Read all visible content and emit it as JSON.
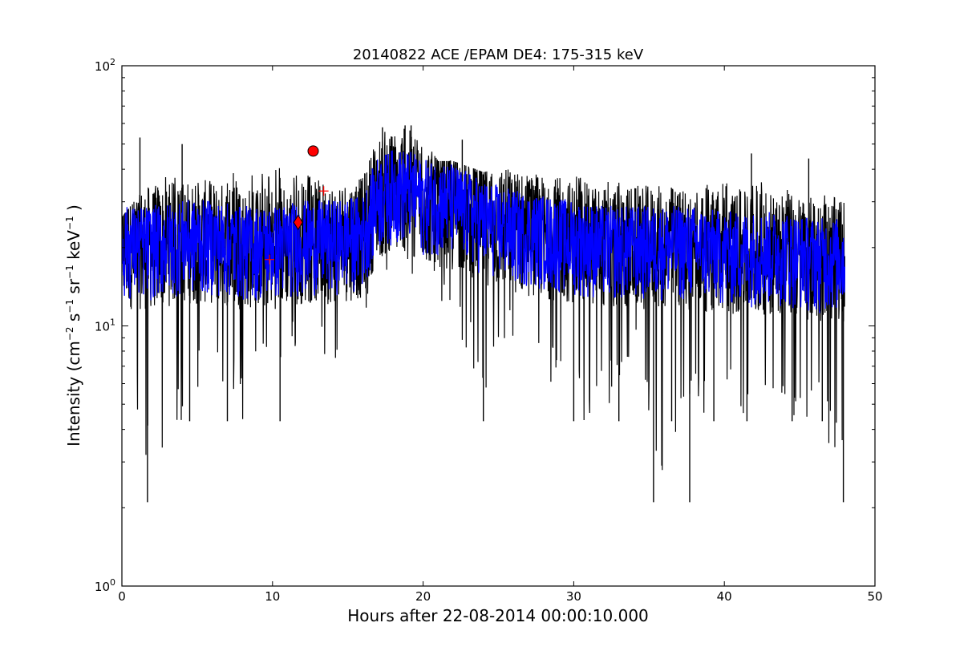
{
  "chart_data": {
    "type": "line",
    "title": "20140822 ACE /EPAM DE4: 175-315 keV",
    "xlabel": "Hours after 22-08-2014 00:00:10.000",
    "ylabel": {
      "prefix": "Intensity (cm",
      "exp1": "−2",
      "s": " s",
      "exp2": "−1",
      "sr": " sr",
      "exp3": "−1",
      "kev": " keV",
      "exp4": "−1",
      "suffix": " )"
    },
    "xlim": [
      0,
      50
    ],
    "ylim": [
      1,
      100
    ],
    "yscale": "log",
    "grid": false,
    "x_ticks": [
      0,
      10,
      20,
      30,
      40,
      50
    ],
    "x_tick_labels": [
      "0",
      "10",
      "20",
      "30",
      "40",
      "50"
    ],
    "y_ticks": [
      {
        "value": 1,
        "base": "10",
        "exp": "0"
      },
      {
        "value": 10,
        "base": "10",
        "exp": "1"
      },
      {
        "value": 100,
        "base": "10",
        "exp": "2"
      }
    ],
    "series": [
      {
        "color": "#000000",
        "description": "raw intensity, highly noisy",
        "x": [
          0,
          2,
          4,
          6,
          8,
          10,
          12,
          14,
          16,
          17,
          18,
          19,
          20,
          21,
          22,
          24,
          26,
          28,
          30,
          32,
          34,
          36,
          38,
          40,
          42,
          44,
          46,
          48
        ],
        "values": [
          20,
          20,
          21,
          21,
          20,
          20,
          21,
          21,
          22,
          31,
          33,
          33,
          30,
          30,
          29,
          25,
          23,
          22,
          21,
          20,
          20,
          20,
          20,
          19,
          19,
          19,
          18,
          18
        ],
        "max": [
          26,
          36,
          39,
          40,
          39,
          41,
          41,
          33,
          37,
          54,
          58,
          59,
          52,
          43,
          43,
          39,
          41,
          38,
          38,
          39,
          37,
          36,
          34,
          38,
          37,
          34,
          33,
          33
        ],
        "min": [
          6.4,
          2.1,
          4.3,
          6.4,
          4.3,
          6.4,
          8.6,
          6.4,
          6.4,
          15,
          15,
          13,
          11,
          13,
          10.7,
          4.3,
          8.6,
          6.4,
          4.3,
          4.3,
          6.4,
          2.1,
          4.3,
          4.3,
          4.3,
          4.3,
          4.3,
          2.1
        ],
        "spikes": [
          [
            1.7,
            2.1
          ],
          [
            35.3,
            2.1
          ],
          [
            37.7,
            2.1
          ],
          [
            47.9,
            2.1
          ],
          [
            4.5,
            4.3
          ],
          [
            7.0,
            4.3
          ],
          [
            10.5,
            4.3
          ],
          [
            24.0,
            4.3
          ],
          [
            30.0,
            4.3
          ],
          [
            33.0,
            4.3
          ],
          [
            36.5,
            4.3
          ],
          [
            39.3,
            4.3
          ],
          [
            41.5,
            4.3
          ],
          [
            44.5,
            4.3
          ],
          [
            46.5,
            4.3
          ],
          [
            1.2,
            53
          ],
          [
            4.0,
            50
          ],
          [
            17.3,
            58
          ],
          [
            18.8,
            59
          ],
          [
            19.2,
            59
          ],
          [
            22.6,
            52
          ],
          [
            41.8,
            46
          ],
          [
            45.6,
            44
          ]
        ]
      },
      {
        "color": "#0000ff",
        "description": "smoothed intensity",
        "x": [
          0,
          2,
          4,
          6,
          8,
          10,
          12,
          14,
          16,
          17,
          18,
          19,
          20,
          21,
          22,
          24,
          26,
          28,
          30,
          32,
          34,
          36,
          38,
          40,
          42,
          44,
          46,
          48
        ],
        "values": [
          20,
          20,
          21,
          21,
          20,
          20,
          21,
          21,
          22,
          31,
          33,
          33,
          30,
          30,
          29,
          25,
          23,
          22,
          21,
          20,
          20,
          20,
          20,
          19,
          19,
          19,
          18,
          18
        ],
        "band": [
          0.62,
          1.45
        ]
      }
    ],
    "markers": [
      {
        "shape": "circle",
        "color": "#ff0000",
        "x": 12.7,
        "y": 47
      },
      {
        "shape": "diamond",
        "color": "#ff0000",
        "x": 11.7,
        "y": 25
      },
      {
        "shape": "plus",
        "color": "#ff0000",
        "x": 9.8,
        "y": 18
      },
      {
        "shape": "plus",
        "color": "#ff0000",
        "x": 13.4,
        "y": 33
      }
    ]
  }
}
